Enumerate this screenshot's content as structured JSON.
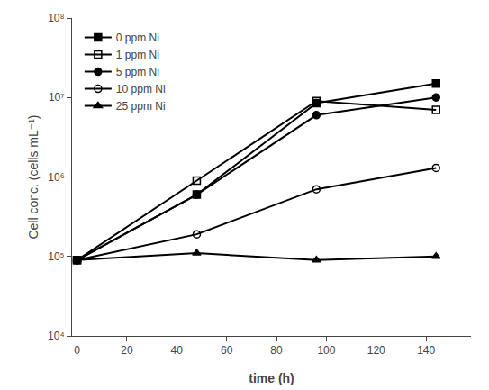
{
  "chart_data": {
    "type": "line",
    "xlabel": "time (h)",
    "ylabel": "Cell conc. (cells mL⁻¹)",
    "x": [
      0,
      48,
      96,
      144
    ],
    "series": [
      {
        "name": "0 ppm Ni",
        "color": "#000000",
        "marker": "square",
        "values": [
          90000.0,
          600000.0,
          8500000.0,
          15000000.0
        ]
      },
      {
        "name": "1 ppm Ni",
        "color": "#000000",
        "marker": "square-open",
        "values": [
          90000.0,
          900000.0,
          9000000.0,
          7000000.0
        ]
      },
      {
        "name": "5 ppm Ni",
        "color": "#000000",
        "marker": "circle",
        "values": [
          90000.0,
          600000.0,
          6000000.0,
          10000000.0
        ]
      },
      {
        "name": "10 ppm Ni",
        "color": "#000000",
        "marker": "circle-open",
        "values": [
          90000.0,
          190000.0,
          700000.0,
          1300000.0
        ]
      },
      {
        "name": "25 ppm Ni",
        "color": "#000000",
        "marker": "triangle-up",
        "values": [
          90000.0,
          110000.0,
          90000.0,
          100000.0
        ]
      }
    ],
    "xlim": [
      -2,
      158
    ],
    "xticks": [
      0,
      20,
      40,
      60,
      80,
      100,
      120,
      140
    ],
    "ylim": [
      10000.0,
      100000000.0
    ],
    "yticks": [
      {
        "value": 10000,
        "label": "10⁴"
      },
      {
        "value": 100000,
        "label": "10⁵"
      },
      {
        "value": 1000000,
        "label": "10⁶"
      },
      {
        "value": 10000000,
        "label": "10⁷"
      },
      {
        "value": 100000000,
        "label": "10⁸"
      }
    ],
    "log": "y",
    "grid": false,
    "legend": "upper left"
  }
}
